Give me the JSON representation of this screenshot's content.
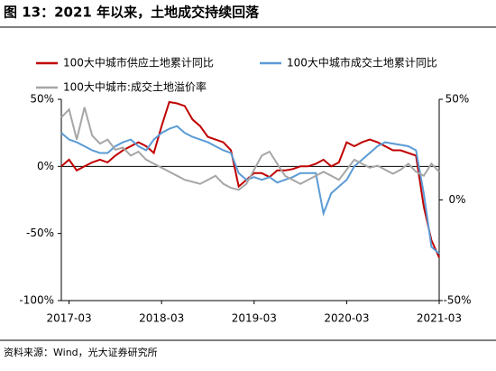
{
  "chart_data": {
    "type": "line",
    "title": "图 13：2021 年以来，土地成交持续回落",
    "source": "资料来源：Wind，光大证券研究所",
    "x": [
      "2017-02",
      "2017-03",
      "2017-04",
      "2017-05",
      "2017-06",
      "2017-07",
      "2017-08",
      "2017-09",
      "2017-10",
      "2017-11",
      "2017-12",
      "2018-01",
      "2018-02",
      "2018-03",
      "2018-04",
      "2018-05",
      "2018-06",
      "2018-07",
      "2018-08",
      "2018-09",
      "2018-10",
      "2018-11",
      "2018-12",
      "2019-01",
      "2019-02",
      "2019-03",
      "2019-04",
      "2019-05",
      "2019-06",
      "2019-07",
      "2019-08",
      "2019-09",
      "2019-10",
      "2019-11",
      "2019-12",
      "2020-01",
      "2020-02",
      "2020-03",
      "2020-04",
      "2020-05",
      "2020-06",
      "2020-07",
      "2020-08",
      "2020-09",
      "2020-10",
      "2020-11",
      "2020-12",
      "2021-01",
      "2021-02",
      "2021-03"
    ],
    "xticks": [
      "2017-03",
      "2018-03",
      "2019-03",
      "2020-03",
      "2021-03"
    ],
    "ylim": [
      -100,
      50
    ],
    "yticks": [
      {
        "value": 50,
        "label": "50%"
      },
      {
        "value": 0,
        "label": "0%"
      },
      {
        "value": -50,
        "label": "-50%"
      },
      {
        "value": -100,
        "label": "-100%"
      }
    ],
    "y2lim": [
      -50,
      50
    ],
    "y2ticks": [
      {
        "value": 50,
        "label": "50%"
      },
      {
        "value": 0,
        "label": "0%"
      },
      {
        "value": -50,
        "label": "-50%"
      }
    ],
    "series": [
      {
        "name": "100大中城市供应土地累计同比",
        "color": "#c00000",
        "values": [
          0,
          5,
          -3,
          0,
          3,
          5,
          3,
          8,
          12,
          15,
          18,
          15,
          10,
          30,
          48,
          47,
          45,
          35,
          30,
          22,
          20,
          18,
          12,
          -15,
          -10,
          -5,
          -5,
          -8,
          -3,
          -3,
          -2,
          0,
          0,
          2,
          5,
          0,
          3,
          18,
          15,
          18,
          20,
          18,
          15,
          12,
          12,
          10,
          8,
          -30,
          -55,
          -68
        ]
      },
      {
        "name": "100大中城市成交土地累计同比",
        "color": "#5b9bd5",
        "values": [
          25,
          20,
          18,
          15,
          12,
          10,
          10,
          15,
          18,
          20,
          15,
          12,
          20,
          25,
          28,
          30,
          25,
          22,
          20,
          18,
          15,
          12,
          10,
          -5,
          -10,
          -8,
          -10,
          -8,
          -12,
          -10,
          -8,
          -5,
          -5,
          -5,
          -35,
          -20,
          -15,
          -10,
          0,
          5,
          10,
          15,
          18,
          17,
          16,
          15,
          12,
          -20,
          -60,
          -65
        ]
      },
      {
        "name": "100大中城市:成交土地溢价率",
        "color": "#a6a6a6",
        "axis": "y2",
        "values": [
          41,
          45,
          30,
          46,
          32,
          28,
          30,
          25,
          26,
          22,
          24,
          20,
          18,
          16,
          14,
          12,
          10,
          9,
          8,
          10,
          12,
          8,
          6,
          5,
          8,
          15,
          22,
          24,
          18,
          12,
          10,
          8,
          10,
          12,
          14,
          12,
          10,
          15,
          20,
          18,
          16,
          17,
          15,
          13,
          15,
          18,
          14,
          12,
          18,
          14
        ]
      }
    ]
  }
}
